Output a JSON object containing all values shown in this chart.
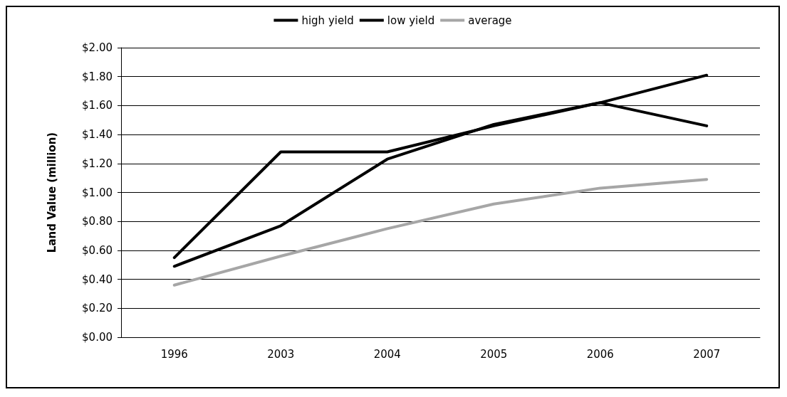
{
  "chart_data": {
    "type": "line",
    "ylabel": "Land Value (million)",
    "categories": [
      "1996",
      "2003",
      "2004",
      "2005",
      "2006",
      "2007"
    ],
    "series": [
      {
        "name": "high yield",
        "color": "#000000",
        "values": [
          0.55,
          1.28,
          1.28,
          1.46,
          1.62,
          1.81
        ]
      },
      {
        "name": "low yield",
        "color": "#000000",
        "values": [
          0.49,
          0.77,
          1.23,
          1.47,
          1.62,
          1.46
        ]
      },
      {
        "name": "average",
        "color": "#a6a6a6",
        "values": [
          0.36,
          0.56,
          0.75,
          0.92,
          1.03,
          1.09
        ]
      }
    ],
    "ylim": [
      0,
      2
    ],
    "yticks": [
      {
        "value": 0,
        "label": "$0.00"
      },
      {
        "value": 0.2,
        "label": "$0.20"
      },
      {
        "value": 0.4,
        "label": "$0.40"
      },
      {
        "value": 0.6,
        "label": "$0.60"
      },
      {
        "value": 0.8,
        "label": "$0.80"
      },
      {
        "value": 1,
        "label": "$1.00"
      },
      {
        "value": 1.2,
        "label": "$1.20"
      },
      {
        "value": 1.4,
        "label": "$1.40"
      },
      {
        "value": 1.6,
        "label": "$1.60"
      },
      {
        "value": 1.8,
        "label": "$1.80"
      },
      {
        "value": 2,
        "label": "$2.00"
      }
    ],
    "grid": "y",
    "legend": "top",
    "marker": "none",
    "line_style": "solid"
  }
}
